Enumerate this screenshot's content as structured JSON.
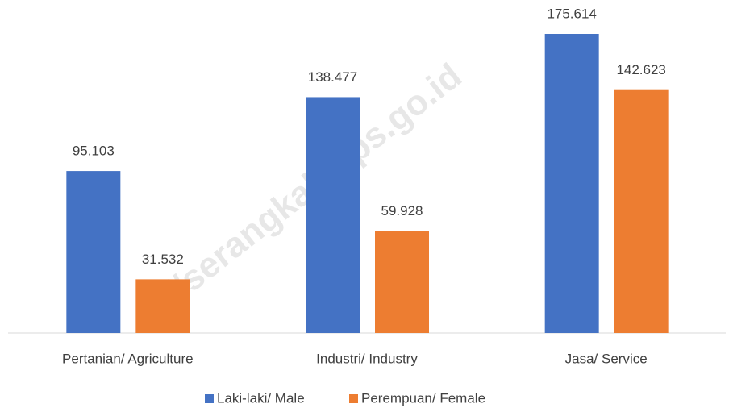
{
  "chart_data": {
    "type": "bar",
    "categories": [
      "Pertanian/ Agriculture",
      "Industri/ Industry",
      "Jasa/ Service"
    ],
    "series": [
      {
        "name": "Laki-laki/ Male",
        "color": "#4472c4",
        "values": [
          95103,
          138477,
          175614
        ],
        "value_labels": [
          "95.103",
          "138.477",
          "175.614"
        ]
      },
      {
        "name": "Perempuan/ Female",
        "color": "#ed7d31",
        "values": [
          31532,
          59928,
          142623
        ],
        "value_labels": [
          "31.532",
          "59.928",
          "142.623"
        ]
      }
    ],
    "legend": "bottom",
    "watermark": "//serangkab.bps.go.id"
  }
}
